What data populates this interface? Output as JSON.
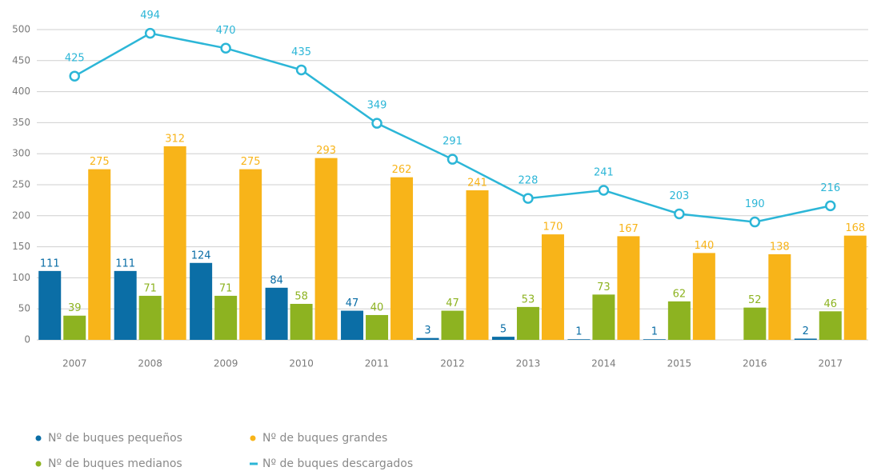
{
  "chart_data": {
    "type": "bar_line",
    "categories": [
      "2007",
      "2008",
      "2009",
      "2010",
      "2011",
      "2012",
      "2013",
      "2014",
      "2015",
      "2016",
      "2017"
    ],
    "series": [
      {
        "name": "Nº de buques pequeños",
        "color": "#0b6ea6",
        "type": "bar",
        "values": [
          111,
          111,
          124,
          84,
          47,
          3,
          5,
          1,
          1,
          null,
          2
        ]
      },
      {
        "name": "Nº de buques medianos",
        "color": "#8db321",
        "type": "bar",
        "values": [
          39,
          71,
          71,
          58,
          40,
          47,
          53,
          73,
          62,
          52,
          46
        ]
      },
      {
        "name": "Nº de buques grandes",
        "color": "#f8b419",
        "type": "bar",
        "values": [
          275,
          312,
          275,
          293,
          262,
          241,
          170,
          167,
          140,
          138,
          168
        ]
      },
      {
        "name": "Nº de buques descargados",
        "color": "#2cb6d7",
        "type": "line",
        "values": [
          425,
          494,
          470,
          435,
          349,
          291,
          228,
          241,
          203,
          190,
          216
        ]
      }
    ],
    "ylim": [
      0,
      500
    ],
    "yticks": [
      0,
      50,
      100,
      150,
      200,
      250,
      300,
      350,
      400,
      450,
      500
    ],
    "grid": true,
    "legend": "bottom-left"
  }
}
